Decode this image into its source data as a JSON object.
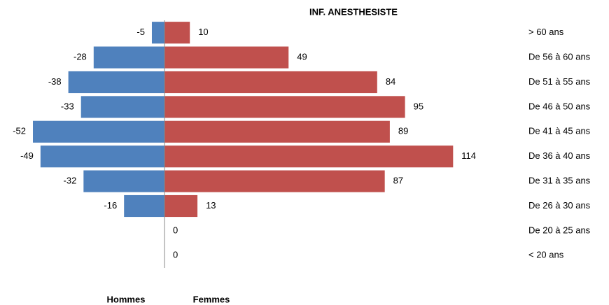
{
  "chart_data": {
    "type": "pyramid",
    "title": "INF. ANESTHESISTE",
    "categories": [
      "> 60 ans",
      "De 56 à 60 ans",
      "De 51 à 55 ans",
      "De 46 à 50 ans",
      "De 41 à 45 ans",
      "De 36 à 40 ans",
      "De 31 à 35 ans",
      "De 26 à 30 ans",
      "De 20 à 25 ans",
      "< 20 ans"
    ],
    "series": [
      {
        "name": "Hommes",
        "color": "#4f81bd",
        "values": [
          -5,
          -28,
          -38,
          -33,
          -52,
          -49,
          -32,
          -16,
          null,
          null
        ]
      },
      {
        "name": "Femmes",
        "color": "#c0504d",
        "values": [
          10,
          49,
          84,
          95,
          89,
          114,
          87,
          13,
          0,
          0
        ]
      }
    ],
    "xlim": [
      -65,
      120
    ]
  }
}
